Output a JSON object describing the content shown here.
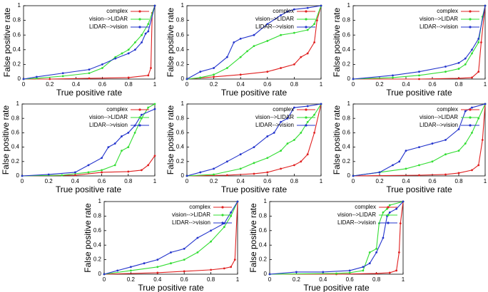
{
  "chart_data": [
    {
      "type": "line",
      "xlabel": "True positive rate",
      "ylabel": "False positive rate",
      "xlim": [
        0,
        1
      ],
      "ylim": [
        0,
        1
      ],
      "xticks": [
        0,
        0.2,
        0.4,
        0.6,
        0.8,
        1
      ],
      "yticks": [
        0,
        0.2,
        0.4,
        0.6,
        0.8,
        1
      ],
      "legend": "upper right",
      "series": [
        {
          "name": "complex",
          "color": "#e02020",
          "x": [
            0,
            0.2,
            0.5,
            0.8,
            0.95,
            0.97,
            0.98,
            1
          ],
          "values": [
            0,
            0,
            0.01,
            0.02,
            0.05,
            0.15,
            0.9,
            1
          ]
        },
        {
          "name": "vision-->LIDAR",
          "color": "#33dd33",
          "x": [
            0,
            0.1,
            0.3,
            0.5,
            0.6,
            0.7,
            0.75,
            0.8,
            0.85,
            0.9,
            0.95,
            1
          ],
          "values": [
            0,
            0.01,
            0.04,
            0.08,
            0.15,
            0.3,
            0.35,
            0.4,
            0.5,
            0.6,
            0.75,
            1
          ]
        },
        {
          "name": "LIDAR-->vision",
          "color": "#2233cc",
          "x": [
            0,
            0.1,
            0.3,
            0.5,
            0.6,
            0.7,
            0.8,
            0.85,
            0.9,
            0.93,
            0.95,
            1
          ],
          "values": [
            0,
            0.03,
            0.08,
            0.13,
            0.2,
            0.28,
            0.35,
            0.4,
            0.5,
            0.62,
            0.65,
            1
          ]
        }
      ]
    },
    {
      "type": "line",
      "xlabel": "True positive rate",
      "ylabel": "False positive rate",
      "xlim": [
        0,
        1
      ],
      "ylim": [
        0,
        1
      ],
      "xticks": [
        0,
        0.2,
        0.4,
        0.6,
        0.8,
        1
      ],
      "yticks": [
        0,
        0.2,
        0.4,
        0.6,
        0.8,
        1
      ],
      "legend": "upper right",
      "series": [
        {
          "name": "complex",
          "color": "#e02020",
          "x": [
            0,
            0.2,
            0.4,
            0.6,
            0.7,
            0.8,
            0.85,
            0.9,
            0.95,
            0.97,
            1
          ],
          "values": [
            0,
            0.03,
            0.06,
            0.1,
            0.15,
            0.2,
            0.3,
            0.35,
            0.5,
            0.8,
            1
          ]
        },
        {
          "name": "vision-->LIDAR",
          "color": "#33dd33",
          "x": [
            0,
            0.1,
            0.2,
            0.3,
            0.4,
            0.45,
            0.5,
            0.6,
            0.7,
            0.8,
            0.9,
            0.95,
            1
          ],
          "values": [
            0,
            0.02,
            0.06,
            0.15,
            0.3,
            0.38,
            0.45,
            0.52,
            0.6,
            0.63,
            0.67,
            0.75,
            1
          ]
        },
        {
          "name": "LIDAR-->vision",
          "color": "#2233cc",
          "x": [
            0,
            0.1,
            0.2,
            0.3,
            0.35,
            0.4,
            0.5,
            0.6,
            0.7,
            0.75,
            0.8,
            0.9,
            1
          ],
          "values": [
            0,
            0.1,
            0.15,
            0.3,
            0.5,
            0.55,
            0.6,
            0.75,
            0.87,
            0.92,
            0.95,
            0.97,
            1
          ]
        }
      ]
    },
    {
      "type": "line",
      "xlabel": "True positive rate",
      "ylabel": "False positive rate",
      "xlim": [
        0,
        1
      ],
      "ylim": [
        0,
        1
      ],
      "xticks": [
        0,
        0.2,
        0.4,
        0.6,
        0.8,
        1
      ],
      "yticks": [
        0,
        0.2,
        0.4,
        0.6,
        0.8,
        1
      ],
      "legend": "upper right",
      "series": [
        {
          "name": "complex",
          "color": "#e02020",
          "x": [
            0,
            0.5,
            0.8,
            0.9,
            0.95,
            0.97,
            1
          ],
          "values": [
            0,
            0,
            0.01,
            0.02,
            0.1,
            0.5,
            1
          ]
        },
        {
          "name": "vision-->LIDAR",
          "color": "#33dd33",
          "x": [
            0,
            0.3,
            0.5,
            0.7,
            0.8,
            0.85,
            0.9,
            0.95,
            0.98,
            1
          ],
          "values": [
            0,
            0.02,
            0.05,
            0.1,
            0.14,
            0.2,
            0.35,
            0.5,
            0.85,
            1
          ]
        },
        {
          "name": "LIDAR-->vision",
          "color": "#2233cc",
          "x": [
            0,
            0.3,
            0.5,
            0.7,
            0.8,
            0.85,
            0.9,
            0.95,
            1
          ],
          "values": [
            0,
            0.05,
            0.1,
            0.17,
            0.22,
            0.28,
            0.4,
            0.55,
            1
          ]
        }
      ]
    },
    {
      "type": "line",
      "xlabel": "True positive rate",
      "ylabel": "False positive rate",
      "xlim": [
        0,
        1
      ],
      "ylim": [
        0,
        1
      ],
      "xticks": [
        0,
        0.2,
        0.4,
        0.6,
        0.8,
        1
      ],
      "yticks": [
        0,
        0.2,
        0.4,
        0.6,
        0.8,
        1
      ],
      "legend": "upper right",
      "series": [
        {
          "name": "complex",
          "color": "#e02020",
          "x": [
            0,
            0.4,
            0.6,
            0.8,
            0.9,
            0.95,
            1
          ],
          "values": [
            0,
            0.01,
            0.05,
            0.06,
            0.08,
            0.15,
            0.28
          ]
        },
        {
          "name": "vision-->LIDAR",
          "color": "#33dd33",
          "x": [
            0,
            0.3,
            0.5,
            0.6,
            0.7,
            0.75,
            0.8,
            0.85,
            0.9,
            0.95,
            1
          ],
          "values": [
            0,
            0.01,
            0.05,
            0.08,
            0.15,
            0.35,
            0.4,
            0.6,
            0.8,
            0.95,
            1
          ]
        },
        {
          "name": "LIDAR-->vision",
          "color": "#2233cc",
          "x": [
            0,
            0.2,
            0.4,
            0.5,
            0.6,
            0.65,
            0.7,
            0.75,
            0.8,
            0.85,
            0.9,
            1
          ],
          "values": [
            0,
            0.02,
            0.05,
            0.15,
            0.25,
            0.4,
            0.45,
            0.55,
            0.6,
            0.7,
            0.85,
            0.93
          ]
        }
      ]
    },
    {
      "type": "line",
      "xlabel": "True positive rate",
      "ylabel": "False positive rate",
      "xlim": [
        0,
        1
      ],
      "ylim": [
        0,
        1
      ],
      "xticks": [
        0,
        0.2,
        0.4,
        0.6,
        0.8,
        1
      ],
      "yticks": [
        0,
        0.2,
        0.4,
        0.6,
        0.8,
        1
      ],
      "legend": "upper right",
      "series": [
        {
          "name": "complex",
          "color": "#e02020",
          "x": [
            0,
            0.3,
            0.5,
            0.6,
            0.7,
            0.8,
            0.85,
            0.9,
            0.95,
            1
          ],
          "values": [
            0,
            0.01,
            0.03,
            0.05,
            0.1,
            0.15,
            0.2,
            0.3,
            0.6,
            1
          ]
        },
        {
          "name": "vision-->LIDAR",
          "color": "#33dd33",
          "x": [
            0,
            0.2,
            0.4,
            0.5,
            0.6,
            0.7,
            0.75,
            0.8,
            0.85,
            0.9,
            0.95,
            1
          ],
          "values": [
            0,
            0.02,
            0.1,
            0.18,
            0.25,
            0.35,
            0.45,
            0.5,
            0.6,
            0.75,
            0.85,
            1
          ]
        },
        {
          "name": "LIDAR-->vision",
          "color": "#2233cc",
          "x": [
            0,
            0.1,
            0.2,
            0.3,
            0.4,
            0.5,
            0.6,
            0.65,
            0.7,
            0.75,
            0.8,
            0.9,
            1
          ],
          "values": [
            0,
            0.05,
            0.1,
            0.2,
            0.3,
            0.4,
            0.55,
            0.6,
            0.75,
            0.8,
            0.95,
            0.97,
            1
          ]
        }
      ]
    },
    {
      "type": "line",
      "xlabel": "True positive rate",
      "ylabel": "False positive rate",
      "xlim": [
        0,
        1
      ],
      "ylim": [
        0,
        1
      ],
      "xticks": [
        0,
        0.2,
        0.4,
        0.6,
        0.8,
        1
      ],
      "yticks": [
        0,
        0.2,
        0.4,
        0.6,
        0.8,
        1
      ],
      "legend": "upper right",
      "series": [
        {
          "name": "complex",
          "color": "#e02020",
          "x": [
            0,
            0.5,
            0.7,
            0.8,
            0.9,
            0.95,
            0.98,
            1
          ],
          "values": [
            0,
            0.01,
            0.02,
            0.04,
            0.08,
            0.15,
            0.5,
            1
          ]
        },
        {
          "name": "vision-->LIDAR",
          "color": "#33dd33",
          "x": [
            0,
            0.2,
            0.4,
            0.5,
            0.6,
            0.7,
            0.8,
            0.85,
            0.9,
            0.95,
            1
          ],
          "values": [
            0,
            0.05,
            0.1,
            0.15,
            0.2,
            0.3,
            0.35,
            0.45,
            0.6,
            0.8,
            1
          ]
        },
        {
          "name": "LIDAR-->vision",
          "color": "#2233cc",
          "x": [
            0,
            0.2,
            0.3,
            0.35,
            0.4,
            0.5,
            0.6,
            0.7,
            0.8,
            0.85,
            0.9,
            1
          ],
          "values": [
            0,
            0.05,
            0.15,
            0.2,
            0.35,
            0.4,
            0.45,
            0.5,
            0.65,
            0.9,
            0.95,
            1
          ]
        }
      ]
    },
    {
      "type": "line",
      "xlabel": "True positive rate",
      "ylabel": "False positive rate",
      "xlim": [
        0,
        1
      ],
      "ylim": [
        0,
        1
      ],
      "xticks": [
        0,
        0.2,
        0.4,
        0.6,
        0.8,
        1
      ],
      "yticks": [
        0,
        0.2,
        0.4,
        0.6,
        0.8,
        1
      ],
      "legend": "upper right",
      "series": [
        {
          "name": "complex",
          "color": "#e02020",
          "x": [
            0,
            0.4,
            0.6,
            0.8,
            0.9,
            0.95,
            0.98,
            1
          ],
          "values": [
            0,
            0.02,
            0.04,
            0.06,
            0.08,
            0.1,
            0.2,
            1
          ]
        },
        {
          "name": "vision-->LIDAR",
          "color": "#33dd33",
          "x": [
            0,
            0.2,
            0.4,
            0.5,
            0.6,
            0.7,
            0.8,
            0.9,
            0.95,
            1
          ],
          "values": [
            0,
            0.05,
            0.1,
            0.15,
            0.2,
            0.3,
            0.45,
            0.65,
            0.8,
            1
          ]
        },
        {
          "name": "LIDAR-->vision",
          "color": "#2233cc",
          "x": [
            0,
            0.1,
            0.2,
            0.3,
            0.4,
            0.5,
            0.6,
            0.7,
            0.8,
            0.9,
            0.95,
            1
          ],
          "values": [
            0,
            0.05,
            0.1,
            0.15,
            0.2,
            0.3,
            0.35,
            0.5,
            0.6,
            0.7,
            0.85,
            1
          ]
        }
      ]
    },
    {
      "type": "line",
      "xlabel": "True positive rate",
      "ylabel": "False positive rate",
      "xlim": [
        0,
        1
      ],
      "ylim": [
        0,
        1
      ],
      "xticks": [
        0,
        0.2,
        0.4,
        0.6,
        0.8,
        1
      ],
      "yticks": [
        0,
        0.2,
        0.4,
        0.6,
        0.8,
        1
      ],
      "legend": "upper right",
      "series": [
        {
          "name": "complex",
          "color": "#e02020",
          "x": [
            0,
            0.5,
            0.8,
            0.9,
            0.95,
            0.97,
            0.98,
            1
          ],
          "values": [
            0,
            0,
            0.01,
            0.02,
            0.05,
            0.3,
            0.7,
            1
          ]
        },
        {
          "name": "vision-->LIDAR",
          "color": "#33dd33",
          "x": [
            0,
            0.5,
            0.6,
            0.7,
            0.75,
            0.8,
            0.82,
            0.85,
            0.88,
            0.9,
            1
          ],
          "values": [
            0,
            0.01,
            0.02,
            0.05,
            0.3,
            0.35,
            0.7,
            0.85,
            0.9,
            0.95,
            1
          ]
        },
        {
          "name": "LIDAR-->vision",
          "color": "#2233cc",
          "x": [
            0,
            0.2,
            0.4,
            0.6,
            0.7,
            0.75,
            0.8,
            0.85,
            0.88,
            0.9,
            0.95,
            1
          ],
          "values": [
            0,
            0.03,
            0.03,
            0.05,
            0.1,
            0.15,
            0.3,
            0.5,
            0.8,
            0.85,
            0.9,
            1
          ]
        }
      ]
    }
  ]
}
